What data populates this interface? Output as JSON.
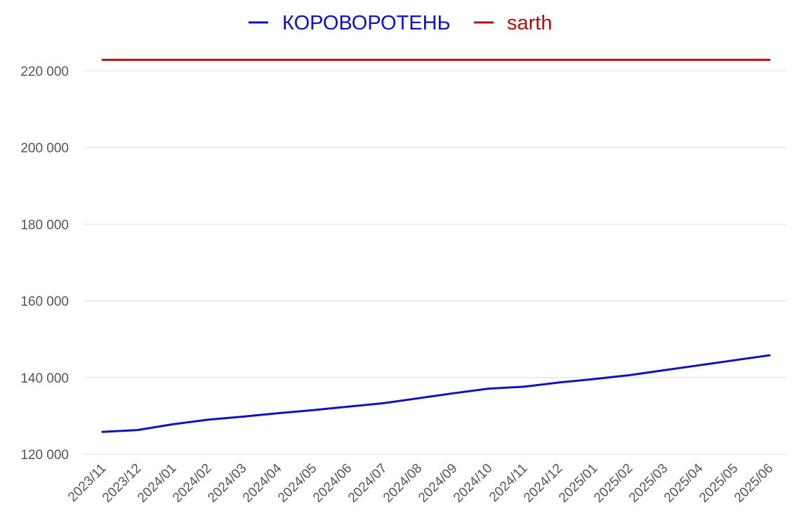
{
  "chart_data": {
    "type": "line",
    "title": "",
    "xlabel": "",
    "ylabel": "",
    "categories": [
      "2023/11",
      "2023/12",
      "2024/01",
      "2024/02",
      "2024/03",
      "2024/04",
      "2024/05",
      "2024/06",
      "2024/07",
      "2024/08",
      "2024/09",
      "2024/10",
      "2024/11",
      "2024/12",
      "2025/01",
      "2025/02",
      "2025/03",
      "2025/04",
      "2025/05",
      "2025/06"
    ],
    "y_ticks": [
      120000,
      140000,
      160000,
      180000,
      200000,
      220000
    ],
    "y_tick_labels": [
      "120 000",
      "140 000",
      "160 000",
      "180 000",
      "200 000",
      "220 000"
    ],
    "ylim": [
      120000,
      222000
    ],
    "grid": true,
    "legend_position": "top-center",
    "series": [
      {
        "name": "КОРОВОРОТЕНЬ",
        "color": "#1010c0",
        "values": [
          125800,
          126300,
          127800,
          129000,
          129800,
          130700,
          131500,
          132400,
          133300,
          134600,
          135900,
          137100,
          137600,
          138700,
          139600,
          140600,
          141900,
          143200,
          144500,
          145800
        ]
      },
      {
        "name": "sarth",
        "color": "#b01010",
        "values": [
          222900,
          222900,
          222900,
          222900,
          222900,
          222900,
          222900,
          222900,
          222900,
          222900,
          222900,
          222900,
          222900,
          222900,
          222900,
          222900,
          222900,
          222900,
          222900,
          222900
        ]
      }
    ]
  }
}
